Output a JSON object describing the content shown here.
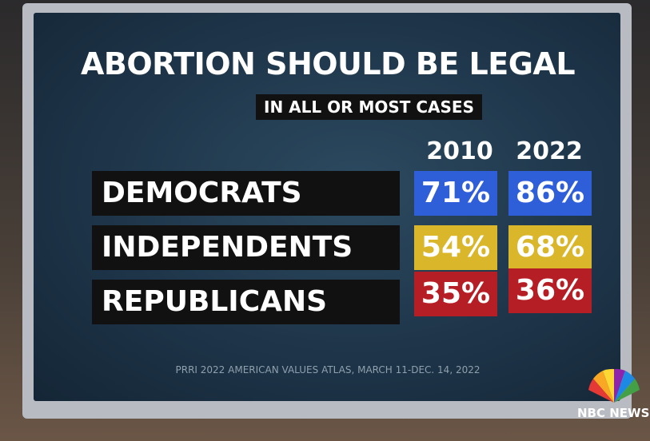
{
  "header": {
    "title": "ABORTION SHOULD BE LEGAL",
    "subtitle": "IN ALL OR MOST CASES"
  },
  "table": {
    "columns": [
      "2010",
      "2022"
    ],
    "rows": [
      {
        "label": "DEMOCRATS",
        "cells": [
          "71%",
          "86%"
        ]
      },
      {
        "label": "INDEPENDENTS",
        "cells": [
          "54%",
          "68%"
        ]
      },
      {
        "label": "REPUBLICANS",
        "cells": [
          "35%",
          "36%"
        ]
      }
    ]
  },
  "source": "PRRI 2022 AMERICAN VALUES ATLAS, MARCH 11-DEC. 14, 2022",
  "logo": "NBC NEWS"
}
